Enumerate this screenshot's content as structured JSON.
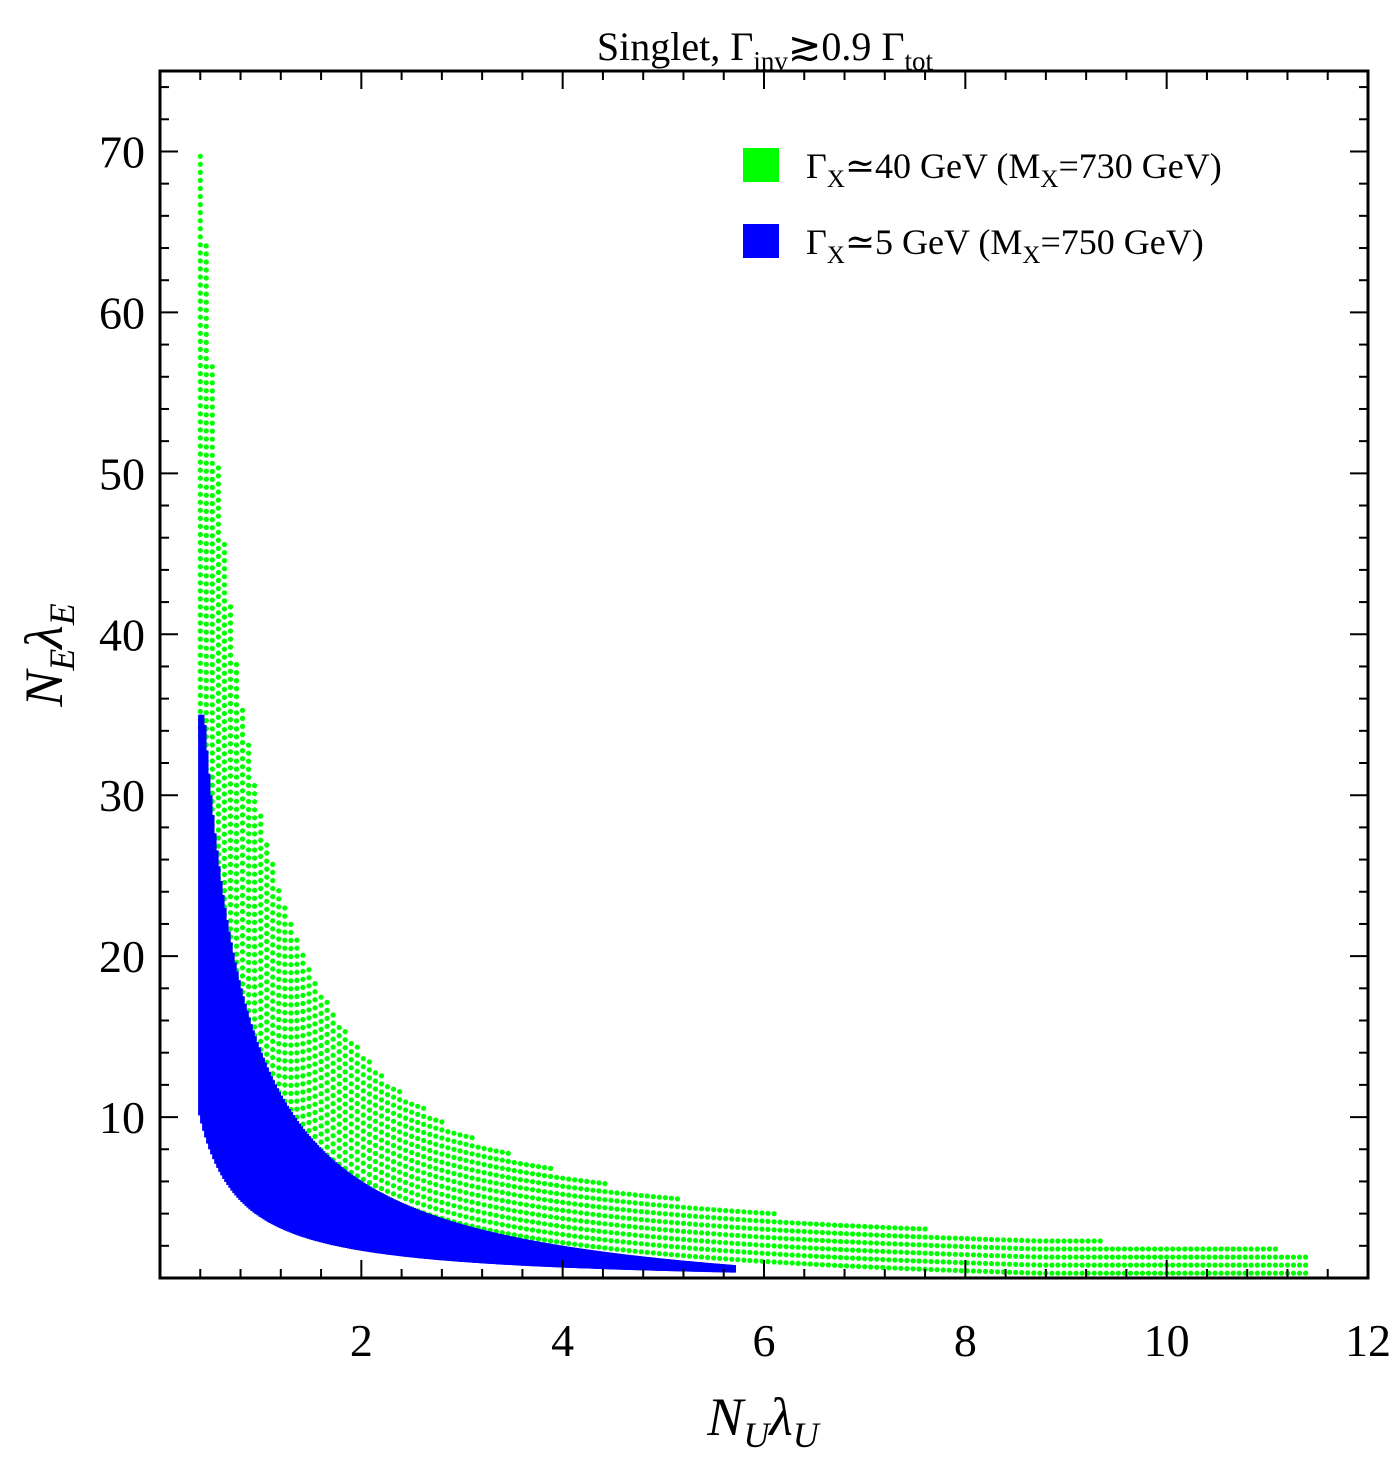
{
  "chart_data": {
    "type": "scatter",
    "title": {
      "main": "Singlet, Γ",
      "sub1": "inv",
      "mid": "≳0.9 Γ",
      "sub2": "tot"
    },
    "xlabel": {
      "main1": "N",
      "sub1": "U",
      "main2": "λ",
      "sub2": "U"
    },
    "ylabel": {
      "main1": "N",
      "sub1": "E",
      "main2": "λ",
      "sub2": "E"
    },
    "xlim": [
      0,
      12
    ],
    "ylim": [
      0,
      75
    ],
    "x_ticks": [
      "2",
      "4",
      "6",
      "8",
      "10",
      "12"
    ],
    "y_ticks": [
      "10",
      "20",
      "30",
      "40",
      "50",
      "60",
      "70"
    ],
    "grid": false,
    "legend_position": "top-right",
    "series": [
      {
        "name": "ΓX≃40 GeV (MX=730 GeV)",
        "legend": {
          "p1": "Γ",
          "s1": "X",
          "p2": "≃40 GeV (M",
          "s2": "X",
          "p3": "=730 GeV)"
        },
        "color": "#00ff00",
        "marker": "dots",
        "region": {
          "x_start": 0.4,
          "x_end": 11.4,
          "y_upper_cap": 70,
          "lower_k": 14,
          "upper_k": 30,
          "x_step": 0.06,
          "y_step": 0.5
        }
      },
      {
        "name": "ΓX≃5 GeV (MX=750 GeV)",
        "legend": {
          "p1": "Γ",
          "s1": "X",
          "p2": "≃5 GeV (M",
          "s2": "X",
          "p3": "=750 GeV)"
        },
        "color": "#0000ff",
        "marker": "dense",
        "region": {
          "x_start": 0.4,
          "x_end": 5.7,
          "y_upper_cap": 35,
          "lower_k": 4.2,
          "upper_k": 16,
          "x_step": 0.02,
          "y_step": 0.25
        }
      }
    ]
  }
}
